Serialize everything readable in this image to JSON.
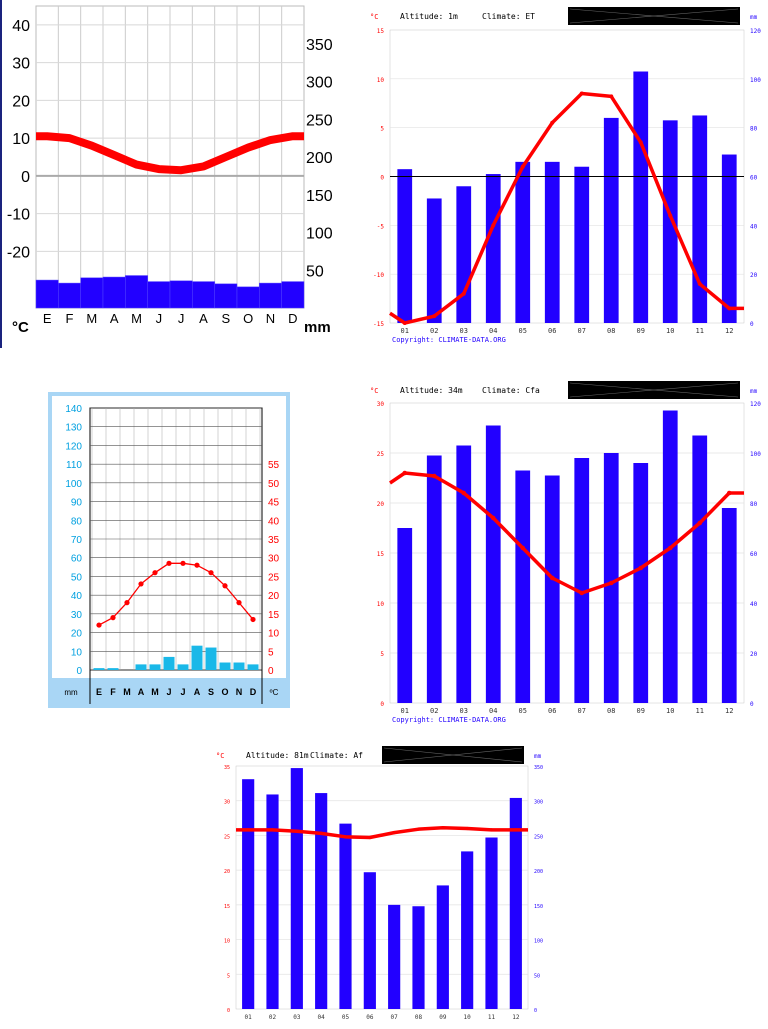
{
  "colors": {
    "temp": "#ff0000",
    "precip": "#2200ff",
    "precip_light": "#1ab8e8",
    "axis_blue": "#00a0e0",
    "zero": "#000000",
    "bg_frame": "#a9d6f5"
  },
  "chart_data": [
    {
      "type": "bar",
      "title": "",
      "months": [
        "E",
        "F",
        "M",
        "A",
        "M",
        "J",
        "J",
        "A",
        "S",
        "O",
        "N",
        "D"
      ],
      "temp_unit": "°C",
      "precip_unit": "mm",
      "temp_ticks": [
        "40",
        "30",
        "20",
        "10",
        "0",
        "-10",
        "-20"
      ],
      "precip_ticks": [
        "350",
        "300",
        "250",
        "200",
        "150",
        "100",
        "50"
      ],
      "temp_range": [
        -35,
        45
      ],
      "precip_range": [
        0,
        400
      ],
      "temperature": [
        10.5,
        10,
        8,
        5.5,
        3,
        1.8,
        1.5,
        2.5,
        5,
        7.5,
        9.5,
        10.5
      ],
      "precipitation": [
        37,
        33,
        40,
        41,
        43,
        35,
        36,
        35,
        32,
        28,
        33,
        35
      ]
    },
    {
      "type": "bar",
      "header": {
        "altitude": "Altitude: 1m",
        "climate": "Climate: ET"
      },
      "temp_unit": "°C",
      "precip_unit": "mm",
      "months": [
        "01",
        "02",
        "03",
        "04",
        "05",
        "06",
        "07",
        "08",
        "09",
        "10",
        "11",
        "12"
      ],
      "temp_ticks": [
        "15",
        "10",
        "5",
        "0",
        "-5",
        "-10",
        "-15"
      ],
      "precip_ticks": [
        "120",
        "100",
        "80",
        "60",
        "40",
        "20",
        "0"
      ],
      "temp_range": [
        -15,
        15
      ],
      "precip_range": [
        0,
        120
      ],
      "temperature": [
        -14,
        -15,
        -14.3,
        -12,
        -5,
        1,
        5.5,
        8.5,
        8.2,
        3.5,
        -4,
        -11,
        -13.5
      ],
      "precipitation": [
        63,
        51,
        56,
        61,
        66,
        66,
        64,
        84,
        103,
        83,
        85,
        69
      ],
      "copyright": "Copyright: CLIMATE-DATA.ORG"
    },
    {
      "type": "bar",
      "months": [
        "E",
        "F",
        "M",
        "A",
        "M",
        "J",
        "J",
        "A",
        "S",
        "O",
        "N",
        "D"
      ],
      "left_unit": "mm",
      "right_unit": "ºC",
      "precip_ticks": [
        "140",
        "130",
        "120",
        "110",
        "100",
        "90",
        "80",
        "70",
        "60",
        "50",
        "40",
        "30",
        "20",
        "10",
        "0"
      ],
      "temp_ticks": [
        "55",
        "50",
        "45",
        "40",
        "35",
        "30",
        "25",
        "20",
        "15",
        "10",
        "5",
        "0"
      ],
      "precip_range": [
        0,
        140
      ],
      "temp_range": [
        0,
        70
      ],
      "temperature": [
        12,
        14,
        18,
        23,
        26,
        28.5,
        28.5,
        28,
        26,
        22.5,
        18,
        13.5
      ],
      "precipitation": [
        1,
        1,
        0,
        3,
        3,
        7,
        3,
        13,
        12,
        4,
        4,
        3
      ]
    },
    {
      "type": "bar",
      "header": {
        "altitude": "Altitude: 34m",
        "climate": "Climate: Cfa"
      },
      "temp_unit": "°C",
      "precip_unit": "mm",
      "months": [
        "01",
        "02",
        "03",
        "04",
        "05",
        "06",
        "07",
        "08",
        "09",
        "10",
        "11",
        "12"
      ],
      "temp_ticks": [
        "30",
        "25",
        "20",
        "15",
        "10",
        "5",
        "0"
      ],
      "precip_ticks": [
        "120",
        "100",
        "80",
        "60",
        "40",
        "20",
        "0"
      ],
      "temp_range": [
        0,
        30
      ],
      "precip_range": [
        0,
        120
      ],
      "temperature": [
        22,
        23,
        22.7,
        21,
        18.5,
        15.5,
        12.5,
        11,
        12,
        13.5,
        15.5,
        18,
        21
      ],
      "precipitation": [
        70,
        99,
        103,
        111,
        93,
        91,
        98,
        100,
        96,
        117,
        107,
        78
      ],
      "copyright": "Copyright: CLIMATE-DATA.ORG"
    },
    {
      "type": "bar",
      "header": {
        "altitude": "Altitude: 81m",
        "climate": "Climate: Af"
      },
      "temp_unit": "°C",
      "precip_unit": "mm",
      "months": [
        "01",
        "02",
        "03",
        "04",
        "05",
        "06",
        "07",
        "08",
        "09",
        "10",
        "11",
        "12"
      ],
      "temp_ticks": [
        "35",
        "30",
        "25",
        "20",
        "15",
        "10",
        "5",
        "0"
      ],
      "precip_ticks": [
        "350",
        "300",
        "250",
        "200",
        "150",
        "100",
        "50",
        "0"
      ],
      "temp_range": [
        0,
        35
      ],
      "precip_range": [
        0,
        350
      ],
      "temperature": [
        25.8,
        25.8,
        25.8,
        25.6,
        25.3,
        24.8,
        24.7,
        25.4,
        25.9,
        26.1,
        26.0,
        25.8,
        25.8
      ],
      "precipitation": [
        331,
        309,
        347,
        311,
        267,
        197,
        150,
        148,
        178,
        227,
        247,
        304
      ]
    }
  ]
}
